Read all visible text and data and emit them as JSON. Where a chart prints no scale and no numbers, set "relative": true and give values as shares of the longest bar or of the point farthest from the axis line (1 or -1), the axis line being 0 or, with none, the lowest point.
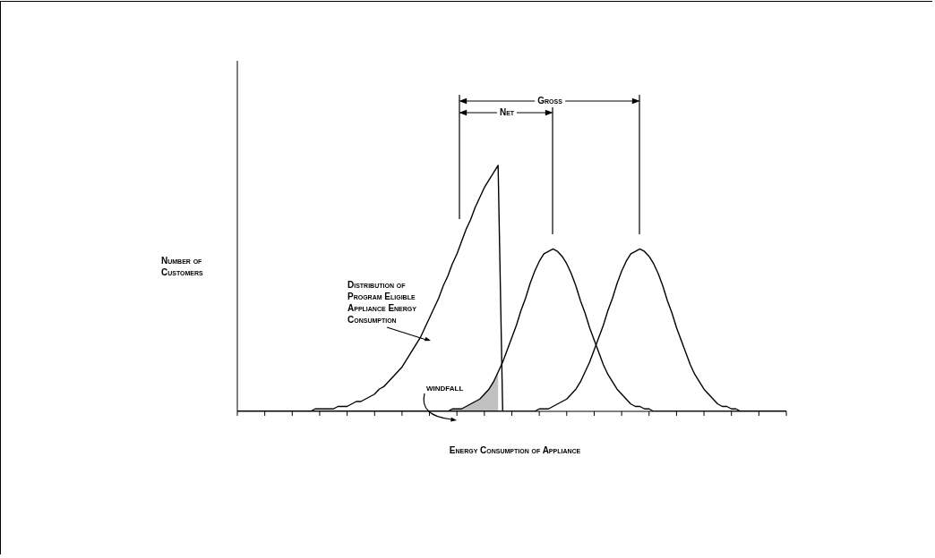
{
  "chart_data": {
    "type": "line",
    "relative": true,
    "xlabel": "Energy Consumption of Appliance",
    "ylabel": "Number of Customers",
    "marker": "none",
    "line_style": "solid",
    "annotations": [
      "Gross",
      "Net",
      "Distribution of Program Eligible Appliance Energy Consumption",
      "WINDFALL"
    ],
    "categories": [
      null,
      null,
      null,
      null,
      null,
      null,
      null,
      null,
      null,
      null,
      null,
      null,
      null,
      null,
      null,
      null,
      null,
      null,
      null,
      null,
      null,
      null,
      null,
      null,
      null,
      null,
      null,
      null,
      null,
      null,
      null,
      null,
      null,
      null,
      null,
      null,
      null,
      null,
      null,
      null,
      null,
      null,
      null,
      null,
      null,
      null,
      null,
      null,
      null,
      null,
      null,
      null,
      null,
      null,
      null,
      null,
      null,
      null,
      null,
      null,
      null,
      null,
      null,
      null,
      null,
      null,
      null,
      null,
      null,
      null,
      null,
      null,
      null,
      null,
      null,
      null,
      null,
      null,
      null,
      null,
      null,
      null,
      null,
      null,
      null,
      null,
      null,
      null,
      null,
      null,
      null,
      null,
      null,
      null,
      null,
      null,
      null,
      null,
      null,
      null,
      null,
      null,
      null,
      null,
      null,
      null,
      null,
      null,
      null,
      null,
      null,
      null,
      null,
      null,
      null,
      null,
      null,
      null,
      null,
      null,
      null
    ],
    "series": [
      {
        "type": "area",
        "color": "#8c8c8c",
        "values": [
          0,
          0,
          0,
          0,
          0,
          0,
          0,
          0,
          0,
          0,
          0,
          0,
          0,
          0,
          0,
          0,
          0,
          0,
          0,
          0,
          0,
          0,
          0,
          0,
          0,
          0,
          0,
          0,
          0,
          0,
          0,
          0,
          0,
          0,
          0,
          0,
          0,
          0,
          0,
          0,
          0,
          0,
          0,
          0,
          0,
          0,
          0,
          0.01,
          0.01,
          0.01,
          0.02,
          0.03,
          0.04,
          0.05,
          0.07,
          0.09,
          0.12,
          0.16,
          null,
          null,
          null,
          null,
          null,
          null,
          null,
          null,
          null,
          null,
          null,
          null,
          null,
          null,
          null,
          null,
          null,
          null,
          null,
          null,
          null,
          null,
          null,
          null,
          null,
          null,
          null,
          null,
          null,
          null,
          null,
          null,
          null,
          null,
          null,
          null,
          null,
          null,
          null,
          null,
          null,
          null,
          null,
          null,
          null,
          null,
          null,
          null,
          null,
          null,
          null,
          null,
          null,
          null,
          null,
          null,
          null,
          null,
          null,
          null,
          null,
          null,
          null
        ]
      },
      {
        "color": "#000000",
        "values": [
          0,
          0,
          0,
          0,
          0,
          0,
          0,
          0,
          0,
          0,
          0,
          0,
          0,
          0,
          0,
          0,
          0,
          0.01,
          0.01,
          0.01,
          0.01,
          0.01,
          0.02,
          0.02,
          0.02,
          0.03,
          0.04,
          0.04,
          0.05,
          0.06,
          0.07,
          0.09,
          0.1,
          0.12,
          0.14,
          0.16,
          0.18,
          0.21,
          0.24,
          0.27,
          0.3,
          0.34,
          0.38,
          0.42,
          0.46,
          0.51,
          0.55,
          0.6,
          0.64,
          0.69,
          0.74,
          0.78,
          0.83,
          0.87,
          0.91,
          0.94,
          0.97,
          1.0,
          0,
          null,
          null,
          null,
          null,
          null,
          null,
          null,
          null,
          null,
          null,
          null,
          null,
          null,
          null,
          null,
          null,
          null,
          null,
          null,
          null,
          null,
          null,
          null,
          null,
          null,
          null,
          null,
          null,
          null,
          null,
          null,
          null,
          null,
          null,
          null,
          null,
          null,
          null,
          null,
          null,
          null,
          null,
          null,
          null,
          null,
          null,
          null,
          null,
          null,
          null,
          null,
          null,
          null,
          null,
          null,
          null,
          null,
          null,
          null,
          null,
          null,
          null
        ]
      },
      {
        "color": "#000000",
        "values": [
          0,
          0,
          0,
          0,
          0,
          0,
          0,
          0,
          0,
          0,
          0,
          0,
          0,
          0,
          0,
          0,
          0,
          0,
          0,
          0,
          0,
          0,
          0,
          0,
          0,
          0,
          0,
          0,
          0,
          0,
          0,
          0,
          0,
          0,
          0,
          0,
          0,
          0,
          0,
          0,
          0,
          0,
          0,
          0,
          0,
          0,
          0,
          0.01,
          0.01,
          0.01,
          0.02,
          0.03,
          0.04,
          0.05,
          0.07,
          0.09,
          0.12,
          0.16,
          0.2,
          0.25,
          0.3,
          0.35,
          0.41,
          0.46,
          0.52,
          0.57,
          0.61,
          0.64,
          0.65,
          0.66,
          0.65,
          0.63,
          0.6,
          0.56,
          0.51,
          0.45,
          0.4,
          0.34,
          0.29,
          0.24,
          0.19,
          0.15,
          0.12,
          0.09,
          0.07,
          0.05,
          0.03,
          0.02,
          0.02,
          0.01,
          0.01,
          0,
          0,
          0,
          0,
          0,
          0,
          0,
          0,
          0,
          0,
          0,
          0,
          0,
          0,
          0,
          0,
          0,
          0,
          0,
          0,
          0,
          0,
          0,
          0,
          0,
          0,
          0,
          0,
          0,
          0
        ]
      },
      {
        "color": "#000000",
        "values": [
          0,
          0,
          0,
          0,
          0,
          0,
          0,
          0,
          0,
          0,
          0,
          0,
          0,
          0,
          0,
          0,
          0,
          0,
          0,
          0,
          0,
          0,
          0,
          0,
          0,
          0,
          0,
          0,
          0,
          0,
          0,
          0,
          0,
          0,
          0,
          0,
          0,
          0,
          0,
          0,
          0,
          0,
          0,
          0,
          0,
          0,
          0,
          0,
          0,
          0,
          0,
          0,
          0,
          0,
          0,
          0,
          0,
          0,
          0,
          0,
          0,
          0,
          0,
          0,
          0,
          0,
          0.01,
          0.01,
          0.01,
          0.02,
          0.03,
          0.04,
          0.05,
          0.07,
          0.09,
          0.12,
          0.16,
          0.2,
          0.25,
          0.3,
          0.35,
          0.41,
          0.46,
          0.52,
          0.57,
          0.61,
          0.64,
          0.65,
          0.66,
          0.65,
          0.63,
          0.6,
          0.56,
          0.51,
          0.45,
          0.4,
          0.34,
          0.29,
          0.24,
          0.19,
          0.15,
          0.12,
          0.09,
          0.07,
          0.05,
          0.03,
          0.02,
          0.02,
          0.01,
          0.01,
          0,
          0,
          0,
          0,
          0,
          0,
          0,
          0,
          0,
          0,
          0
        ]
      }
    ]
  }
}
